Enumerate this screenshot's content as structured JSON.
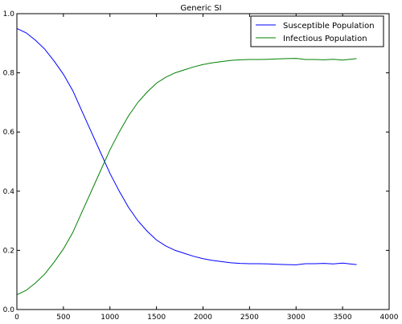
{
  "chart_data": {
    "type": "line",
    "title": "Generic SI",
    "xlabel": "",
    "ylabel": "",
    "xlim": [
      0,
      4000
    ],
    "ylim": [
      0.0,
      1.0
    ],
    "xticks": [
      0,
      500,
      1000,
      1500,
      2000,
      2500,
      3000,
      3500,
      4000
    ],
    "yticks": [
      0.0,
      0.2,
      0.4,
      0.6,
      0.8,
      1.0
    ],
    "tick_labels_x": [
      "0",
      "500",
      "1000",
      "1500",
      "2000",
      "2500",
      "3000",
      "3500",
      "4000"
    ],
    "tick_labels_y": [
      "0.0",
      "0.2",
      "0.4",
      "0.6",
      "0.8",
      "1.0"
    ],
    "grid": false,
    "legend_position": "top-right",
    "series": [
      {
        "name": "Susceptible Population",
        "color": "#0000ff",
        "x": [
          0,
          100,
          200,
          300,
          400,
          500,
          600,
          700,
          800,
          900,
          1000,
          1100,
          1200,
          1300,
          1400,
          1500,
          1600,
          1700,
          1800,
          1900,
          2000,
          2100,
          2200,
          2300,
          2400,
          2500,
          2600,
          2700,
          2800,
          2900,
          3000,
          3100,
          3200,
          3300,
          3400,
          3500,
          3650
        ],
        "values": [
          0.95,
          0.935,
          0.91,
          0.88,
          0.84,
          0.795,
          0.74,
          0.67,
          0.6,
          0.53,
          0.46,
          0.4,
          0.345,
          0.3,
          0.265,
          0.235,
          0.215,
          0.2,
          0.19,
          0.18,
          0.172,
          0.166,
          0.162,
          0.158,
          0.156,
          0.155,
          0.155,
          0.154,
          0.153,
          0.152,
          0.151,
          0.155,
          0.155,
          0.156,
          0.154,
          0.157,
          0.152
        ]
      },
      {
        "name": "Infectious Population",
        "color": "#008000",
        "x": [
          0,
          100,
          200,
          300,
          400,
          500,
          600,
          700,
          800,
          900,
          1000,
          1100,
          1200,
          1300,
          1400,
          1500,
          1600,
          1700,
          1800,
          1900,
          2000,
          2100,
          2200,
          2300,
          2400,
          2500,
          2600,
          2700,
          2800,
          2900,
          3000,
          3100,
          3200,
          3300,
          3400,
          3500,
          3650
        ],
        "values": [
          0.05,
          0.065,
          0.09,
          0.12,
          0.16,
          0.205,
          0.26,
          0.33,
          0.4,
          0.47,
          0.54,
          0.6,
          0.655,
          0.7,
          0.735,
          0.765,
          0.785,
          0.8,
          0.81,
          0.82,
          0.828,
          0.834,
          0.838,
          0.842,
          0.844,
          0.845,
          0.845,
          0.846,
          0.847,
          0.848,
          0.849,
          0.845,
          0.845,
          0.844,
          0.846,
          0.843,
          0.848
        ]
      }
    ]
  }
}
